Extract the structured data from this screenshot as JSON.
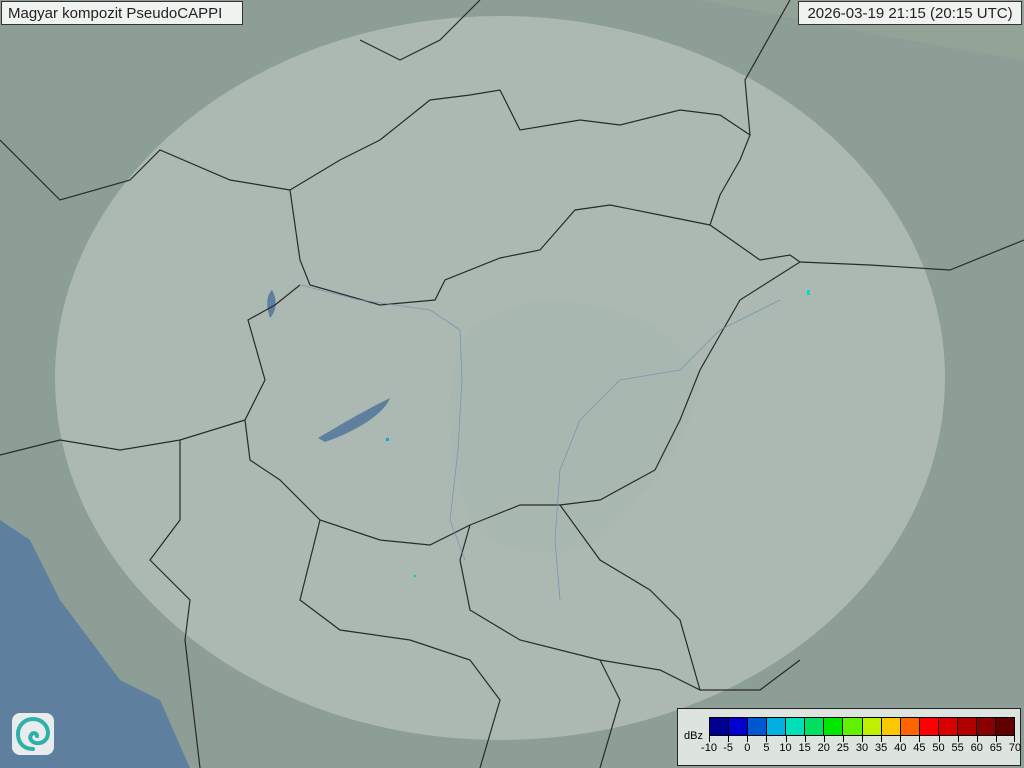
{
  "header": {
    "title": "Magyar kompozit  PseudoCAPPI",
    "timestamp": "2026-03-19 21:15 (20:15 UTC)"
  },
  "legend": {
    "unit": "dBz",
    "ticks": [
      "-10",
      "-5",
      "0",
      "5",
      "10",
      "15",
      "20",
      "25",
      "30",
      "35",
      "40",
      "45",
      "50",
      "55",
      "60",
      "65",
      "70"
    ],
    "colors": [
      "#000090",
      "#0000d0",
      "#0058d0",
      "#00b0e0",
      "#00e0b8",
      "#00e060",
      "#00e800",
      "#60f000",
      "#c0f000",
      "#f8c800",
      "#ff6400",
      "#ff0000",
      "#d80000",
      "#b00000",
      "#880000",
      "#600000"
    ]
  },
  "map": {
    "background": "#8c9e95",
    "radar_coverage": "#e6ece8",
    "water": "#5f7f9e",
    "border": "#2a2a2a"
  },
  "logo": {
    "name": "swirl-logo-icon"
  }
}
